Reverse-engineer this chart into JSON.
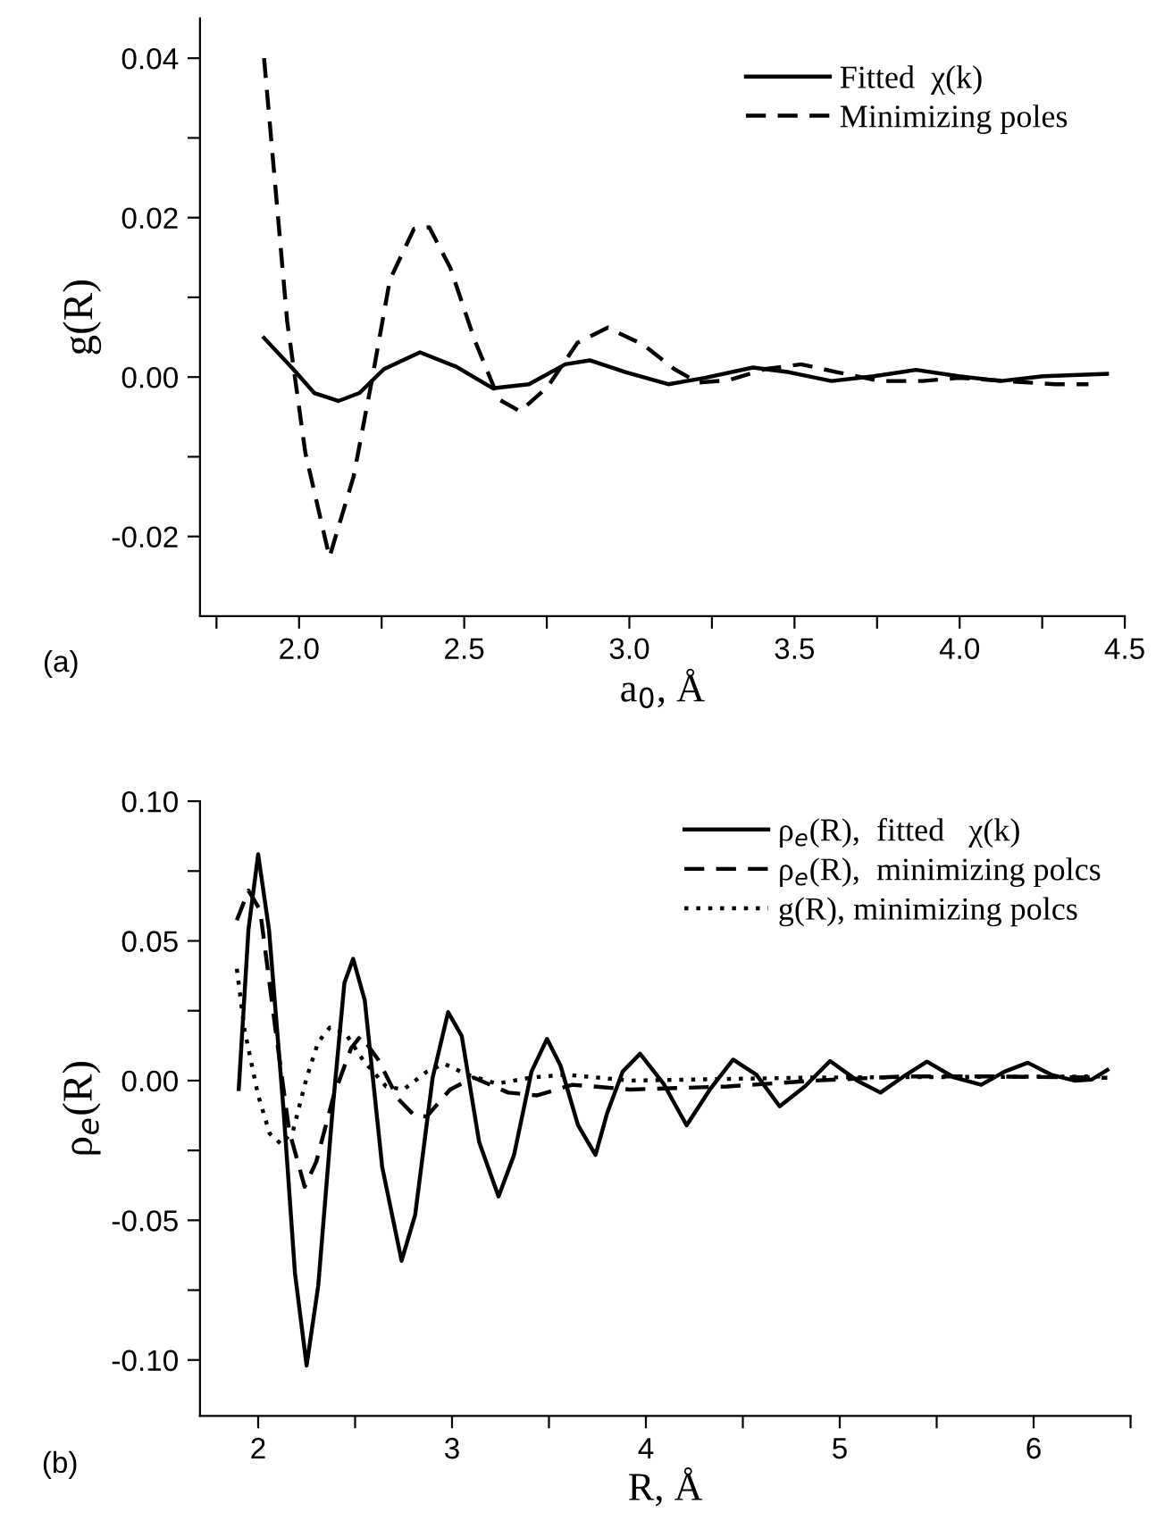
{
  "chart_data": [
    {
      "type": "line",
      "xlabel": "a$_{0}$, Å",
      "ylabel": "g(R)",
      "annotations": [
        "(a)"
      ],
      "legend": "top right",
      "xlim": [
        1.7,
        4.5
      ],
      "ylim": [
        -0.03,
        0.045
      ],
      "xticks": [
        {
          "value": 1.75,
          "label": null
        },
        {
          "value": 2.0,
          "label": "2.0"
        },
        {
          "value": 2.25,
          "label": null
        },
        {
          "value": 2.5,
          "label": "2.5"
        },
        {
          "value": 2.75,
          "label": null
        },
        {
          "value": 3.0,
          "label": "3.0"
        },
        {
          "value": 3.25,
          "label": null
        },
        {
          "value": 3.5,
          "label": "3.5"
        },
        {
          "value": 3.75,
          "label": null
        },
        {
          "value": 4.0,
          "label": "4.0"
        },
        {
          "value": 4.25,
          "label": null
        },
        {
          "value": 4.5,
          "label": "4.5"
        }
      ],
      "yticks": [
        {
          "value": -0.02,
          "label": "-0.02"
        },
        {
          "value": -0.01,
          "label": null
        },
        {
          "value": 0.0,
          "label": "0.00"
        },
        {
          "value": 0.01,
          "label": null
        },
        {
          "value": 0.02,
          "label": "0.02"
        },
        {
          "value": 0.03,
          "label": null
        },
        {
          "value": 0.04,
          "label": "0.04"
        }
      ],
      "series": [
        {
          "name": "Fitted  χ(k)",
          "color": "#000000",
          "line_style": "solid",
          "x": [
            1.894,
            1.982,
            2.046,
            2.119,
            2.183,
            2.257,
            2.366,
            2.476,
            2.586,
            2.696,
            2.806,
            2.88,
            2.99,
            3.118,
            3.228,
            3.374,
            3.484,
            3.612,
            3.74,
            3.868,
            3.997,
            4.125,
            4.253,
            4.446
          ],
          "values": [
            0.0049,
            0.001,
            -0.002,
            -0.003,
            -0.002,
            0.001,
            0.0031,
            0.0013,
            -0.0014,
            -0.0009,
            0.0016,
            0.0021,
            0.0006,
            -0.0009,
            -0.0001,
            0.0012,
            0.0006,
            -0.0005,
            0.0001,
            0.0009,
            0.0001,
            -0.0005,
            0.0001,
            0.0004
          ]
        },
        {
          "name": "Minimizing poles",
          "color": "#000000",
          "line_style": "dashed",
          "x": [
            1.894,
            1.964,
            2.019,
            2.092,
            2.165,
            2.22,
            2.275,
            2.348,
            2.394,
            2.458,
            2.531,
            2.605,
            2.669,
            2.751,
            2.843,
            2.935,
            3.044,
            3.136,
            3.209,
            3.3,
            3.41,
            3.52,
            3.63,
            3.76,
            3.887,
            3.997,
            4.14,
            4.29,
            4.39
          ],
          "values": [
            0.04,
            0.007,
            -0.0095,
            -0.0226,
            -0.0125,
            -0.0005,
            0.0122,
            0.0186,
            0.0188,
            0.0137,
            0.0047,
            -0.0028,
            -0.0043,
            -0.0013,
            0.0043,
            0.0062,
            0.004,
            0.001,
            -0.0007,
            -0.0004,
            0.001,
            0.0016,
            0.0006,
            -0.0005,
            -0.0005,
            -0.0001,
            -0.0005,
            -0.0009,
            -0.0009
          ]
        }
      ]
    },
    {
      "type": "line",
      "xlabel": "R, Å",
      "ylabel": "ρ$_{e}$(R)",
      "annotations": [
        "(b)"
      ],
      "legend": "top right",
      "xlim": [
        1.7,
        6.5
      ],
      "ylim": [
        -0.12,
        0.1
      ],
      "xticks": [
        2,
        {
          "value": 2.5,
          "label": null
        },
        3,
        {
          "value": 3.5,
          "label": null
        },
        4,
        {
          "value": 4.5,
          "label": null
        },
        5,
        {
          "value": 5.5,
          "label": null
        },
        6,
        {
          "value": 6.5,
          "label": null
        }
      ],
      "yticks": [
        {
          "value": -0.1,
          "label": "-0.10"
        },
        {
          "value": -0.075,
          "label": null
        },
        {
          "value": -0.05,
          "label": "-0.05"
        },
        {
          "value": -0.025,
          "label": null
        },
        {
          "value": 0.0,
          "label": "0.00"
        },
        {
          "value": 0.025,
          "label": null
        },
        {
          "value": 0.05,
          "label": "0.05"
        },
        {
          "value": 0.075,
          "label": null
        },
        {
          "value": 0.1,
          "label": "0.10"
        }
      ],
      "series": [
        {
          "name": "ρ$_{e}$(R),  fitted   χ(k)",
          "color": "#000000",
          "line_style": "solid",
          "x": [
            1.9,
            1.95,
            2.0,
            2.056,
            2.13,
            2.19,
            2.25,
            2.31,
            2.385,
            2.445,
            2.49,
            2.55,
            2.64,
            2.74,
            2.81,
            2.9,
            2.98,
            3.05,
            3.14,
            3.24,
            3.32,
            3.41,
            3.49,
            3.56,
            3.65,
            3.74,
            3.8,
            3.88,
            3.97,
            4.09,
            4.21,
            4.33,
            4.45,
            4.57,
            4.69,
            4.82,
            4.95,
            5.09,
            5.21,
            5.33,
            5.45,
            5.59,
            5.73,
            5.85,
            5.97,
            6.09,
            6.21,
            6.3,
            6.38
          ],
          "values": [
            -0.003,
            0.054,
            0.081,
            0.054,
            -0.0096,
            -0.069,
            -0.102,
            -0.0734,
            -0.0096,
            0.035,
            0.0436,
            0.0287,
            -0.031,
            -0.0645,
            -0.048,
            0.001,
            0.0245,
            0.016,
            -0.022,
            -0.0415,
            -0.0266,
            0.0032,
            0.0149,
            0.0053,
            -0.016,
            -0.0266,
            -0.0117,
            0.0032,
            0.0096,
            -0.001,
            -0.016,
            -0.0032,
            0.0075,
            0.0021,
            -0.0092,
            -0.0021,
            0.007,
            0.0,
            -0.0043,
            0.0015,
            0.0068,
            0.0011,
            -0.0015,
            0.0032,
            0.0064,
            0.0021,
            0.0,
            0.0004,
            0.0038
          ]
        },
        {
          "name": "ρ$_{e}$(R),  minimizing polcs",
          "color": "#000000",
          "line_style": "dashed",
          "x": [
            1.89,
            1.95,
            2.01,
            2.09,
            2.16,
            2.24,
            2.3,
            2.39,
            2.48,
            2.53,
            2.62,
            2.72,
            2.81,
            2.87,
            2.99,
            3.11,
            3.29,
            3.44,
            3.62,
            3.92,
            4.42,
            4.87,
            5.33,
            5.78,
            6.38
          ],
          "values": [
            0.0574,
            0.068,
            0.061,
            0.018,
            -0.018,
            -0.038,
            -0.029,
            -0.0053,
            0.0117,
            0.016,
            0.0074,
            -0.0064,
            -0.0128,
            -0.0128,
            -0.0032,
            0.0011,
            -0.0043,
            -0.0053,
            -0.0015,
            -0.0032,
            -0.0021,
            0.0,
            0.0015,
            0.0015,
            0.001
          ]
        },
        {
          "name": "g(R), minimizing polcs",
          "color": "#000000",
          "line_style": "dotted",
          "x": [
            1.89,
            1.93,
            2.0,
            2.06,
            2.12,
            2.18,
            2.25,
            2.31,
            2.37,
            2.45,
            2.54,
            2.66,
            2.75,
            2.87,
            2.96,
            3.08,
            3.23,
            3.41,
            3.59,
            3.92,
            4.87,
            6.38
          ],
          "values": [
            0.04,
            0.018,
            -0.0053,
            -0.019,
            -0.0228,
            -0.018,
            0.001,
            0.0138,
            0.019,
            0.017,
            0.0074,
            -0.0021,
            -0.0032,
            0.0032,
            0.006,
            0.0021,
            -0.0011,
            0.0011,
            0.0021,
            0.0,
            0.0011,
            0.0015
          ]
        }
      ]
    }
  ]
}
